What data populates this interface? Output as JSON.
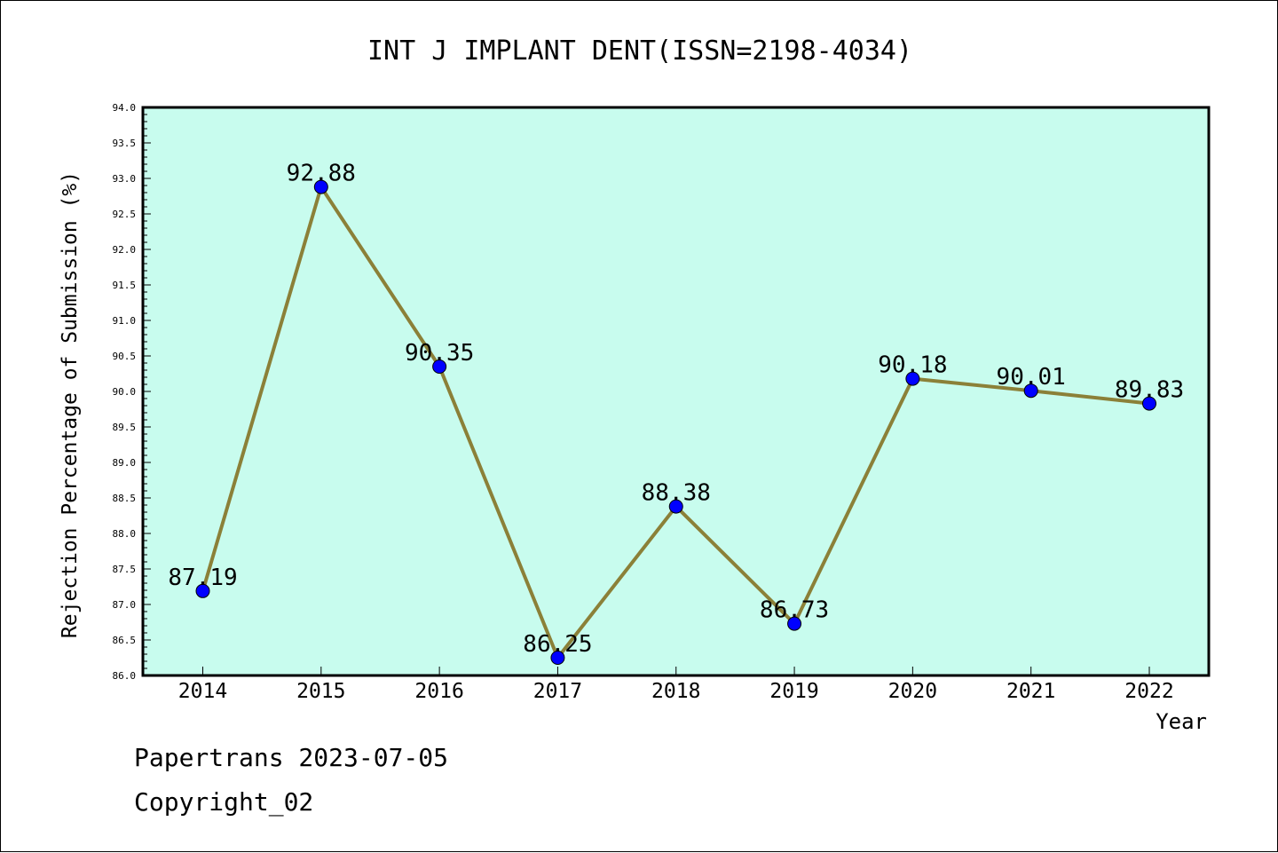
{
  "chart_data": {
    "type": "line",
    "title": "INT J IMPLANT DENT(ISSN=2198-4034)",
    "xlabel": "Year",
    "ylabel": "Rejection Percentage of Submission (%)",
    "categories": [
      "2014",
      "2015",
      "2016",
      "2017",
      "2018",
      "2019",
      "2020",
      "2021",
      "2022"
    ],
    "series": [
      {
        "values": [
          87.19,
          92.88,
          90.35,
          86.25,
          88.38,
          86.73,
          90.18,
          90.01,
          89.83
        ]
      }
    ],
    "data_labels": [
      "87.19",
      "92.88",
      "90.35",
      "86.25",
      "88.38",
      "86.73",
      "90.18",
      "90.01",
      "89.83"
    ],
    "ylim": [
      86.0,
      94.0
    ],
    "yticks": [
      "86.0",
      "86.5",
      "87.0",
      "87.5",
      "88.0",
      "88.5",
      "89.0",
      "89.5",
      "90.0",
      "90.5",
      "91.0",
      "91.5",
      "92.0",
      "92.5",
      "93.0",
      "93.5",
      "94.0"
    ],
    "grid": false,
    "colors": {
      "plot_background": "#c8fcee",
      "line": "#8b8038",
      "marker": "#0000ff"
    }
  },
  "footer": {
    "line1": "Papertrans 2023-07-05",
    "line2": "Copyright_02"
  }
}
